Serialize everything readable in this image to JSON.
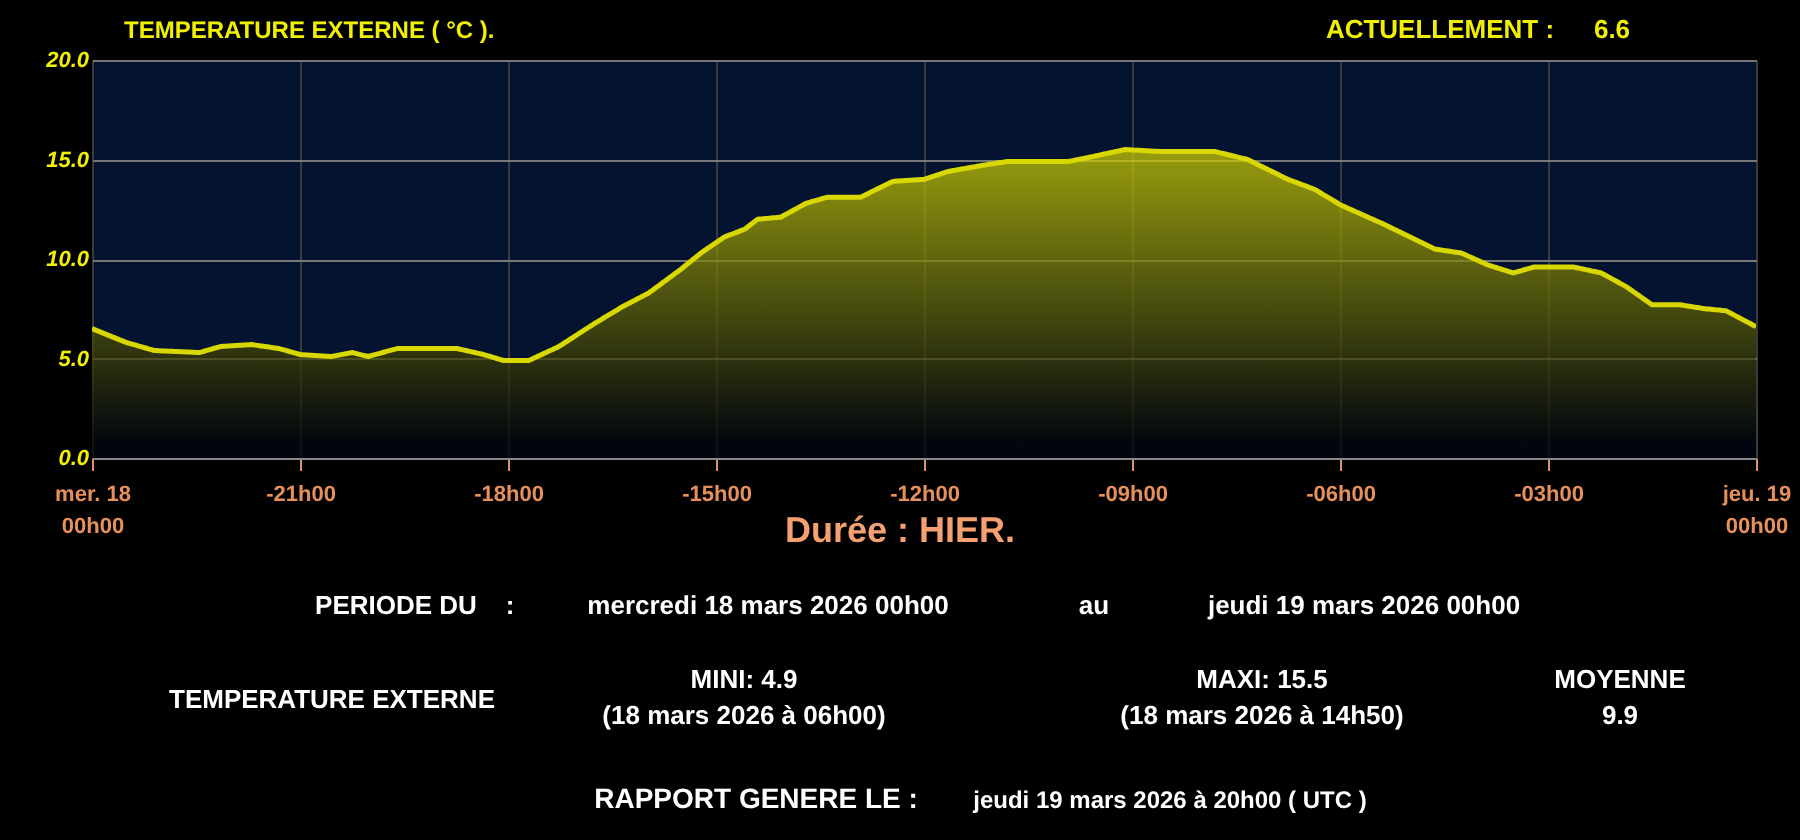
{
  "chart_data": {
    "type": "area",
    "title": "TEMPERATURE EXTERNE ( °C ).",
    "xlabel": "Durée : HIER.",
    "x": [
      "2026-03-18T00:00",
      "2026-03-18T00:30",
      "2026-03-18T00:54",
      "2026-03-18T01:33",
      "2026-03-18T01:51",
      "2026-03-18T02:18",
      "2026-03-18T02:42",
      "2026-03-18T03:00",
      "2026-03-18T03:27",
      "2026-03-18T03:45",
      "2026-03-18T03:59",
      "2026-03-18T04:24",
      "2026-03-18T05:16",
      "2026-03-18T05:39",
      "2026-03-18T05:56",
      "2026-03-18T06:18",
      "2026-03-18T06:44",
      "2026-03-18T07:16",
      "2026-03-18T07:39",
      "2026-03-18T08:02",
      "2026-03-18T08:30",
      "2026-03-18T08:47",
      "2026-03-18T09:07",
      "2026-03-18T09:25",
      "2026-03-18T09:36",
      "2026-03-18T09:56",
      "2026-03-18T10:18",
      "2026-03-18T10:36",
      "2026-03-18T11:05",
      "2026-03-18T11:33",
      "2026-03-18T12:00",
      "2026-03-18T12:21",
      "2026-03-18T12:50",
      "2026-03-18T13:12",
      "2026-03-18T14:05",
      "2026-03-18T14:22",
      "2026-03-18T14:54",
      "2026-03-18T15:25",
      "2026-03-18T16:12",
      "2026-03-18T16:40",
      "2026-03-18T17:15",
      "2026-03-18T17:38",
      "2026-03-18T18:01",
      "2026-03-18T18:36",
      "2026-03-18T19:22",
      "2026-03-18T19:45",
      "2026-03-18T20:08",
      "2026-03-18T20:30",
      "2026-03-18T20:48",
      "2026-03-18T21:22",
      "2026-03-18T21:46",
      "2026-03-18T22:08",
      "2026-03-18T22:30",
      "2026-03-18T22:54",
      "2026-03-18T23:16",
      "2026-03-18T23:34",
      "2026-03-19T00:00"
    ],
    "series": [
      {
        "color": "#d8d800",
        "values": [
          6.5,
          5.8,
          5.4,
          5.3,
          5.6,
          5.7,
          5.5,
          5.2,
          5.1,
          5.3,
          5.1,
          5.5,
          5.5,
          5.2,
          4.9,
          4.9,
          5.6,
          6.8,
          7.6,
          8.3,
          9.5,
          10.3,
          11.1,
          11.5,
          12.0,
          12.1,
          12.8,
          13.1,
          13.1,
          13.9,
          14.0,
          14.4,
          14.7,
          14.9,
          14.9,
          15.1,
          15.5,
          15.4,
          15.4,
          15.0,
          14.0,
          13.5,
          12.7,
          11.8,
          10.5,
          10.3,
          9.7,
          9.3,
          9.6,
          9.6,
          9.3,
          8.6,
          7.7,
          7.7,
          7.5,
          7.4,
          6.6
        ]
      }
    ],
    "xlim": [
      "2026-03-18T00:00",
      "2026-03-19T00:00"
    ],
    "xticks": [
      {
        "value": "2026-03-18T00:00",
        "label": "mer. 18\n00h00"
      },
      {
        "value": "2026-03-18T03:00",
        "label": "-21h00"
      },
      {
        "value": "2026-03-18T06:00",
        "label": "-18h00"
      },
      {
        "value": "2026-03-18T09:00",
        "label": "-15h00"
      },
      {
        "value": "2026-03-18T12:00",
        "label": "-12h00"
      },
      {
        "value": "2026-03-18T15:00",
        "label": "-09h00"
      },
      {
        "value": "2026-03-18T18:00",
        "label": "-06h00"
      },
      {
        "value": "2026-03-18T21:00",
        "label": "-03h00"
      },
      {
        "value": "2026-03-19T00:00",
        "label": "jeu. 19\n00h00"
      }
    ],
    "ylim": [
      0,
      20
    ],
    "yticks": [
      {
        "value": 0,
        "label": "0.0"
      },
      {
        "value": 5,
        "label": "5.0"
      },
      {
        "value": 10,
        "label": "10.0"
      },
      {
        "value": 15,
        "label": "15.0"
      },
      {
        "value": 20,
        "label": "20.0"
      }
    ],
    "grid": true,
    "marker": "none",
    "line_style": "solid",
    "annotations": [
      "ACTUELLEMENT :",
      "6.6",
      "PERIODE DU",
      ":",
      "mercredi 18 mars 2026 00h00",
      "au",
      "jeudi 19 mars 2026 00h00",
      "TEMPERATURE EXTERNE",
      "MINI:  4.9",
      "(18 mars 2026 à 06h00)",
      "MAXI:  15.5",
      "(18 mars 2026 à 14h50)",
      "MOYENNE",
      "9.9",
      "RAPPORT GENERE LE :",
      "jeudi 19 mars 2026 à 20h00 ( UTC )"
    ]
  }
}
